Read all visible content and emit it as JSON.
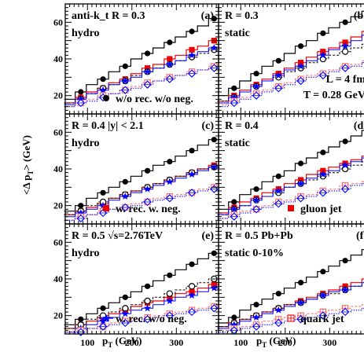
{
  "figure": {
    "ylabel": "<Δ p",
    "ylabel_sub": "T",
    "ylabel_suffix": "> (GeV)",
    "xlabel": "p",
    "xlabel_sub": "T",
    "xlabel_suffix": " (GeV)",
    "x_ticks": [
      "100",
      "200",
      "300"
    ],
    "y_ticks": [
      "20",
      "40",
      "60"
    ]
  },
  "colors": {
    "black": "#000000",
    "red": "#ee0000",
    "blue": "#0000ff",
    "pink": "#ff6666"
  },
  "chart_data": [
    {
      "type": "line",
      "panel": "a",
      "xlim": [
        50,
        395
      ],
      "ylim": [
        10,
        70
      ],
      "labels": [
        "anti-k_t  R = 0.3",
        "hydro"
      ],
      "legend": "w/o rec. w/o neg.",
      "legend_marker": "filled-circle",
      "x": [
        60,
        85,
        110,
        135,
        160,
        185,
        210,
        235,
        260,
        285,
        310,
        335,
        360,
        385
      ],
      "series": [
        {
          "marker": "filled-circle",
          "color": "black",
          "values": [
            18,
            22,
            26,
            29,
            33,
            36,
            40,
            43,
            46,
            49,
            52,
            55,
            58,
            62
          ]
        },
        {
          "marker": "filled-square",
          "color": "red",
          "values": [
            16,
            19,
            22,
            24,
            27,
            29,
            32,
            35,
            37,
            40,
            42,
            45,
            47,
            50
          ]
        },
        {
          "marker": "open-circle",
          "color": "black",
          "values": [
            16,
            18,
            21,
            24,
            26,
            28,
            31,
            33,
            35,
            37,
            39,
            41,
            43,
            45
          ]
        },
        {
          "marker": "star",
          "color": "blue",
          "values": [
            15,
            18,
            21,
            23,
            26,
            28,
            30,
            33,
            35,
            37,
            39,
            42,
            44,
            46
          ]
        },
        {
          "marker": "open-square",
          "color": "pink",
          "values": [
            14,
            16,
            18,
            20,
            21,
            23,
            25,
            27,
            28,
            30,
            31,
            33,
            34,
            36
          ]
        },
        {
          "marker": "open-diamond",
          "color": "blue",
          "values": [
            14,
            16,
            17,
            19,
            21,
            23,
            24,
            26,
            28,
            29,
            31,
            32,
            34,
            35
          ]
        }
      ]
    },
    {
      "type": "line",
      "panel": "b",
      "xlim": [
        50,
        395
      ],
      "ylim": [
        10,
        70
      ],
      "labels": [
        "R = 0.3",
        "static",
        "L = 4 fm",
        "T = 0.28 GeV"
      ],
      "x": [
        60,
        85,
        110,
        135,
        160,
        185,
        210,
        235,
        260,
        285,
        310,
        335,
        360,
        385
      ],
      "series": [
        {
          "marker": "filled-circle",
          "color": "black",
          "values": [
            20,
            24,
            28,
            32,
            36,
            39,
            43,
            47,
            50,
            54,
            57,
            60,
            63,
            66
          ]
        },
        {
          "marker": "filled-square",
          "color": "red",
          "values": [
            17,
            20,
            23,
            26,
            29,
            32,
            35,
            38,
            41,
            44,
            46,
            49,
            52,
            55
          ]
        },
        {
          "marker": "open-circle",
          "color": "black",
          "values": [
            17,
            19,
            22,
            25,
            28,
            30,
            33,
            35,
            38,
            40,
            42,
            44,
            46,
            48
          ]
        },
        {
          "marker": "star",
          "color": "blue",
          "values": [
            16,
            19,
            22,
            25,
            28,
            31,
            34,
            36,
            39,
            42,
            45,
            47,
            50,
            53
          ]
        },
        {
          "marker": "open-square",
          "color": "pink",
          "values": [
            15,
            17,
            19,
            21,
            23,
            25,
            27,
            29,
            31,
            32,
            34,
            36,
            37,
            39
          ]
        },
        {
          "marker": "open-diamond",
          "color": "blue",
          "values": [
            14,
            16,
            18,
            20,
            22,
            24,
            26,
            28,
            30,
            31,
            33,
            35,
            36,
            38
          ]
        }
      ]
    },
    {
      "type": "line",
      "panel": "c",
      "xlim": [
        50,
        395
      ],
      "ylim": [
        10,
        70
      ],
      "labels": [
        "R = 0.4  |y| < 2.1",
        "hydro"
      ],
      "legend": "w. rec. w. neg.",
      "legend_marker": "filled-square",
      "x": [
        60,
        85,
        110,
        135,
        160,
        185,
        210,
        235,
        260,
        285,
        310,
        335,
        360,
        385
      ],
      "series": [
        {
          "marker": "filled-circle",
          "color": "black",
          "values": [
            17,
            20,
            24,
            27,
            30,
            33,
            36,
            39,
            42,
            44,
            47,
            50,
            53,
            56
          ]
        },
        {
          "marker": "filled-square",
          "color": "red",
          "values": [
            15,
            17,
            19,
            21,
            24,
            26,
            28,
            30,
            32,
            34,
            36,
            38,
            40,
            42
          ]
        },
        {
          "marker": "open-circle",
          "color": "black",
          "values": [
            15,
            17,
            20,
            22,
            24,
            26,
            28,
            30,
            32,
            34,
            36,
            38,
            40,
            41
          ]
        },
        {
          "marker": "star",
          "color": "blue",
          "values": [
            14,
            16,
            18,
            20,
            23,
            25,
            27,
            29,
            31,
            33,
            35,
            37,
            39,
            41
          ]
        },
        {
          "marker": "open-square",
          "color": "pink",
          "values": [
            12,
            14,
            15,
            17,
            18,
            19,
            21,
            22,
            24,
            25,
            26,
            27,
            29,
            30
          ]
        },
        {
          "marker": "open-diamond",
          "color": "blue",
          "values": [
            12,
            13,
            15,
            16,
            18,
            19,
            20,
            22,
            23,
            24,
            25,
            27,
            28,
            29
          ]
        }
      ]
    },
    {
      "type": "line",
      "panel": "d",
      "xlim": [
        50,
        395
      ],
      "ylim": [
        10,
        70
      ],
      "labels": [
        "R = 0.4",
        "static"
      ],
      "legend": "gluon jet",
      "legend_marker": "filled-square",
      "x": [
        60,
        85,
        110,
        135,
        160,
        185,
        210,
        235,
        260,
        285,
        310,
        335,
        360,
        385
      ],
      "series": [
        {
          "marker": "filled-circle",
          "color": "black",
          "values": [
            18,
            22,
            26,
            29,
            33,
            36,
            39,
            43,
            46,
            49,
            52,
            55,
            58,
            61
          ]
        },
        {
          "marker": "filled-square",
          "color": "red",
          "values": [
            16,
            19,
            22,
            24,
            27,
            29,
            32,
            34,
            37,
            39,
            41,
            43,
            45,
            47
          ]
        },
        {
          "marker": "open-circle",
          "color": "black",
          "values": [
            15,
            18,
            20,
            23,
            25,
            27,
            30,
            32,
            34,
            36,
            38,
            40,
            42,
            44
          ]
        },
        {
          "marker": "star",
          "color": "blue",
          "values": [
            15,
            18,
            20,
            23,
            25,
            28,
            30,
            32,
            35,
            37,
            39,
            42,
            44,
            46
          ]
        },
        {
          "marker": "open-square",
          "color": "pink",
          "values": [
            13,
            15,
            17,
            18,
            20,
            22,
            23,
            25,
            26,
            28,
            29,
            31,
            32,
            33
          ]
        },
        {
          "marker": "open-diamond",
          "color": "blue",
          "values": [
            13,
            14,
            16,
            18,
            19,
            21,
            22,
            24,
            25,
            27,
            28,
            29,
            31,
            32
          ]
        }
      ]
    },
    {
      "type": "line",
      "panel": "e",
      "xlim": [
        50,
        395
      ],
      "ylim": [
        10,
        70
      ],
      "labels": [
        "R = 0.5  √s=2.76TeV",
        "hydro"
      ],
      "legend": "w. rec. w/o neg.",
      "legend_marker": "star",
      "x": [
        60,
        85,
        110,
        135,
        160,
        185,
        210,
        235,
        260,
        285,
        310,
        335,
        360,
        385
      ],
      "series": [
        {
          "marker": "filled-circle",
          "color": "black",
          "values": [
            15,
            18,
            21,
            24,
            27,
            30,
            33,
            36,
            39,
            42,
            45,
            48,
            51,
            54
          ]
        },
        {
          "marker": "filled-square",
          "color": "red",
          "values": [
            13,
            15,
            17,
            19,
            21,
            23,
            25,
            27,
            28,
            30,
            32,
            33,
            35,
            37
          ]
        },
        {
          "marker": "open-circle",
          "color": "black",
          "values": [
            13,
            15,
            18,
            20,
            22,
            24,
            26,
            28,
            30,
            32,
            34,
            36,
            38,
            40
          ]
        },
        {
          "marker": "star",
          "color": "blue",
          "values": [
            11,
            13,
            15,
            17,
            19,
            21,
            23,
            24,
            26,
            28,
            30,
            31,
            33,
            35
          ]
        },
        {
          "marker": "open-square",
          "color": "pink",
          "values": [
            11,
            12,
            13,
            14,
            16,
            17,
            18,
            19,
            20,
            21,
            22,
            23,
            24,
            25
          ]
        },
        {
          "marker": "open-diamond",
          "color": "blue",
          "values": [
            10,
            11,
            13,
            14,
            15,
            16,
            17,
            18,
            19,
            20,
            21,
            22,
            23,
            24
          ]
        }
      ]
    },
    {
      "type": "line",
      "panel": "f",
      "xlim": [
        50,
        395
      ],
      "ylim": [
        10,
        70
      ],
      "labels": [
        "R = 0.5 Pb+Pb",
        "static    0-10%"
      ],
      "legend": "quark jet",
      "legend_marker": "open-square",
      "x": [
        60,
        85,
        110,
        135,
        160,
        185,
        210,
        235,
        260,
        285,
        310,
        335,
        360,
        385
      ],
      "series": [
        {
          "marker": "filled-circle",
          "color": "black",
          "values": [
            16,
            19,
            23,
            26,
            29,
            32,
            35,
            38,
            41,
            44,
            47,
            50,
            53,
            56
          ]
        },
        {
          "marker": "filled-square",
          "color": "red",
          "values": [
            14,
            16,
            18,
            20,
            22,
            24,
            26,
            28,
            30,
            32,
            34,
            36,
            38,
            40
          ]
        },
        {
          "marker": "open-circle",
          "color": "black",
          "values": [
            14,
            16,
            18,
            20,
            22,
            24,
            26,
            27,
            29,
            31,
            32,
            34,
            36,
            37
          ]
        },
        {
          "marker": "star",
          "color": "blue",
          "values": [
            13,
            15,
            17,
            19,
            21,
            23,
            25,
            27,
            29,
            31,
            33,
            34,
            36,
            38
          ]
        },
        {
          "marker": "open-square",
          "color": "pink",
          "values": [
            12,
            13,
            14,
            15,
            17,
            18,
            19,
            20,
            21,
            22,
            23,
            24,
            25,
            26
          ]
        },
        {
          "marker": "open-diamond",
          "color": "blue",
          "values": [
            11,
            12,
            13,
            14,
            15,
            16,
            17,
            18,
            19,
            20,
            21,
            22,
            23,
            24
          ]
        }
      ]
    }
  ]
}
